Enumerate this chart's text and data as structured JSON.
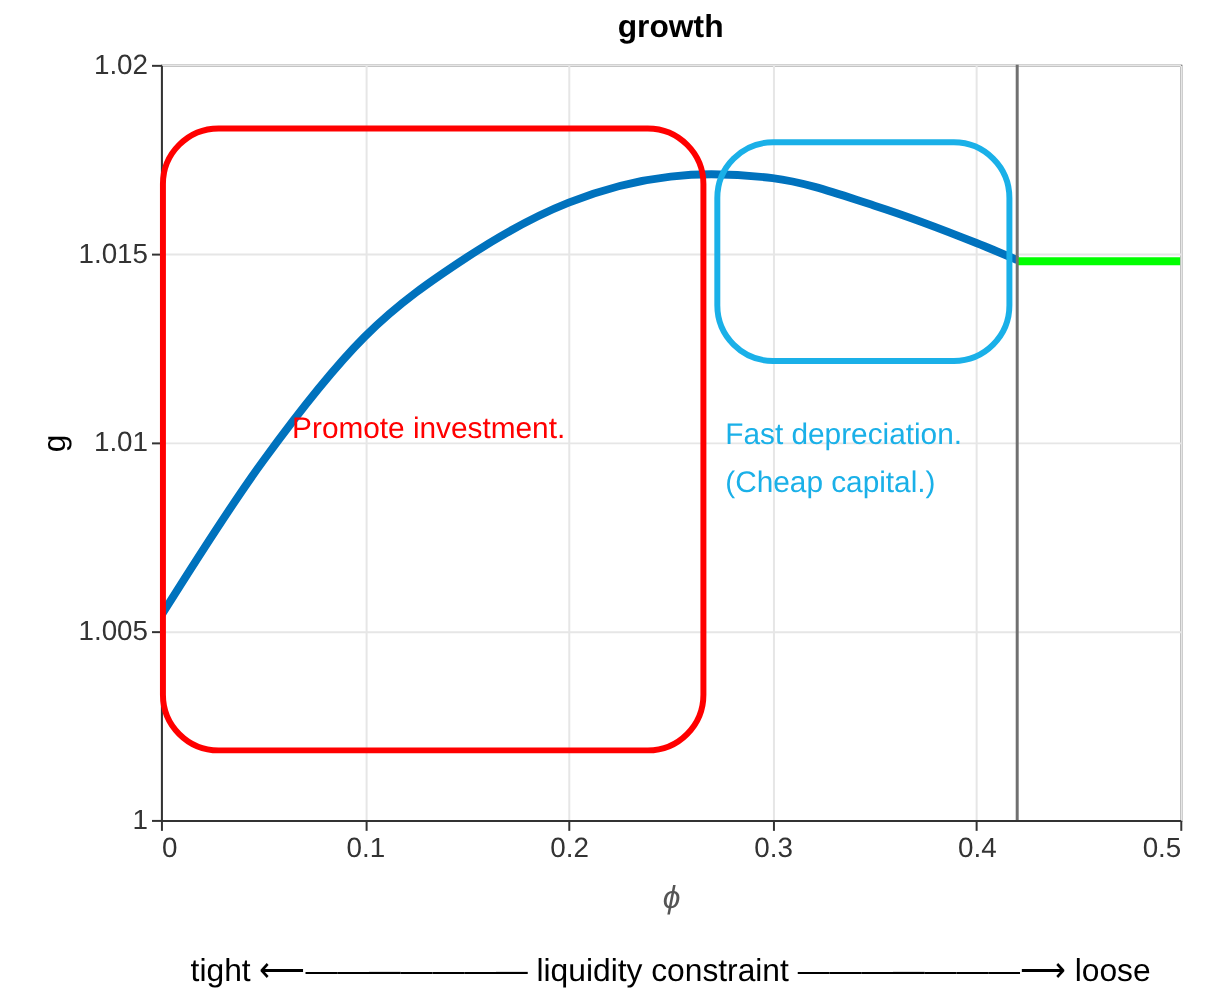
{
  "chart_data": {
    "type": "line",
    "title": "growth",
    "xlabel": "ϕ",
    "ylabel": "g",
    "xlim": [
      0,
      0.5
    ],
    "xticks": [
      0,
      0.1,
      0.2,
      0.3,
      0.4,
      0.5
    ],
    "ylim": [
      1,
      1.02
    ],
    "yticks": [
      1,
      1.005,
      1.01,
      1.015,
      1.02
    ],
    "grid": true,
    "series": [
      {
        "color": "#0072bd",
        "x": [
          0,
          0.05,
          0.1,
          0.15,
          0.2,
          0.25,
          0.27,
          0.3,
          0.35,
          0.4,
          0.42
        ],
        "values": [
          1.0054,
          1.0095,
          1.0128,
          1.0149,
          1.01635,
          1.01704,
          1.0171,
          1.017,
          1.01627,
          1.01528,
          1.01483
        ]
      },
      {
        "color": "#00ff00",
        "x": [
          0.42,
          0.5
        ],
        "values": [
          1.0148,
          1.0148
        ]
      }
    ],
    "ref_lines": [
      {
        "axis": "x",
        "value": 0.42,
        "color": "#707070"
      }
    ],
    "annotations": [
      "Promote investment.",
      "Fast depreciation.\n(Cheap capital.)",
      "tight  ⟵———————  liquidity constraint  ———————⟶  loose"
    ]
  }
}
